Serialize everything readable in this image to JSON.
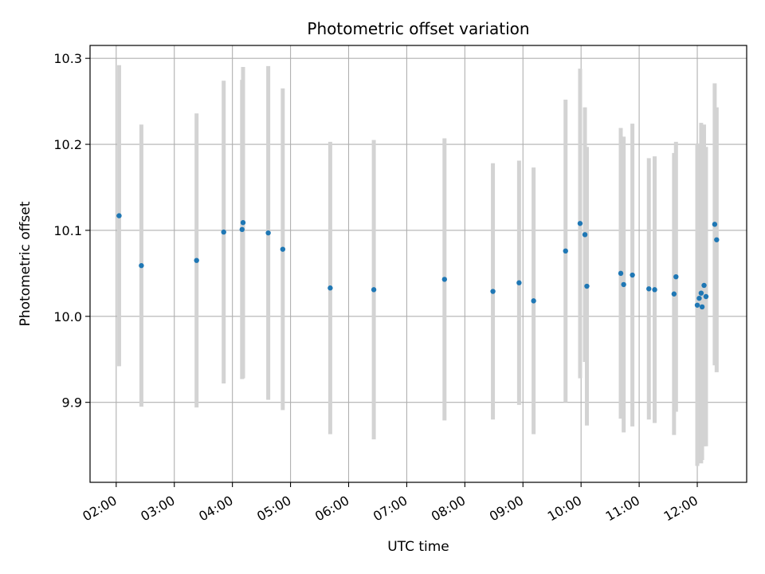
{
  "chart_data": {
    "type": "scatter",
    "title": "Photometric offset variation",
    "xlabel": "UTC time",
    "ylabel": "Photometric offset",
    "x_ticks": [
      "02:00",
      "03:00",
      "04:00",
      "05:00",
      "06:00",
      "07:00",
      "08:00",
      "09:00",
      "10:00",
      "11:00",
      "12:00"
    ],
    "x_tick_hours": [
      2,
      3,
      4,
      5,
      6,
      7,
      8,
      9,
      10,
      11,
      12
    ],
    "y_ticks": [
      "9.9",
      "10.0",
      "10.1",
      "10.2",
      "10.3"
    ],
    "y_tick_values": [
      9.9,
      10.0,
      10.1,
      10.2,
      10.3
    ],
    "xlim_hours": [
      1.55,
      12.85
    ],
    "ylim": [
      9.807,
      10.315
    ],
    "grid": true,
    "colors": {
      "point": "#1f77b4",
      "errorbar": "#d3d3d3",
      "grid": "#b0b0b0"
    },
    "series": [
      {
        "x": [
          "02:03",
          "02:26",
          "03:23",
          "03:51",
          "04:10",
          "04:11",
          "04:37",
          "04:52",
          "05:41",
          "06:26",
          "07:39",
          "08:29",
          "08:56",
          "09:11",
          "09:44",
          "09:59",
          "10:04",
          "10:06",
          "10:41",
          "10:44",
          "10:53",
          "11:10",
          "11:16",
          "11:36",
          "11:38",
          "12:00",
          "12:02",
          "12:04",
          "12:05",
          "12:07",
          "12:09",
          "12:18",
          "12:20"
        ],
        "y": [
          10.117,
          10.059,
          10.065,
          10.098,
          10.101,
          10.109,
          10.097,
          10.078,
          10.033,
          10.031,
          10.043,
          10.029,
          10.039,
          10.018,
          10.076,
          10.108,
          10.095,
          10.035,
          10.05,
          10.037,
          10.048,
          10.032,
          10.031,
          10.026,
          10.046,
          10.013,
          10.021,
          10.027,
          10.011,
          10.036,
          10.023,
          10.107,
          10.089
        ],
        "err": [
          0.175,
          0.164,
          0.171,
          0.176,
          0.174,
          0.181,
          0.194,
          0.187,
          0.17,
          0.174,
          0.164,
          0.149,
          0.142,
          0.155,
          0.176,
          0.18,
          0.148,
          0.162,
          0.169,
          0.172,
          0.176,
          0.152,
          0.155,
          0.164,
          0.157,
          0.187,
          0.18,
          0.198,
          0.178,
          0.187,
          0.174,
          0.164,
          0.154
        ]
      }
    ]
  }
}
